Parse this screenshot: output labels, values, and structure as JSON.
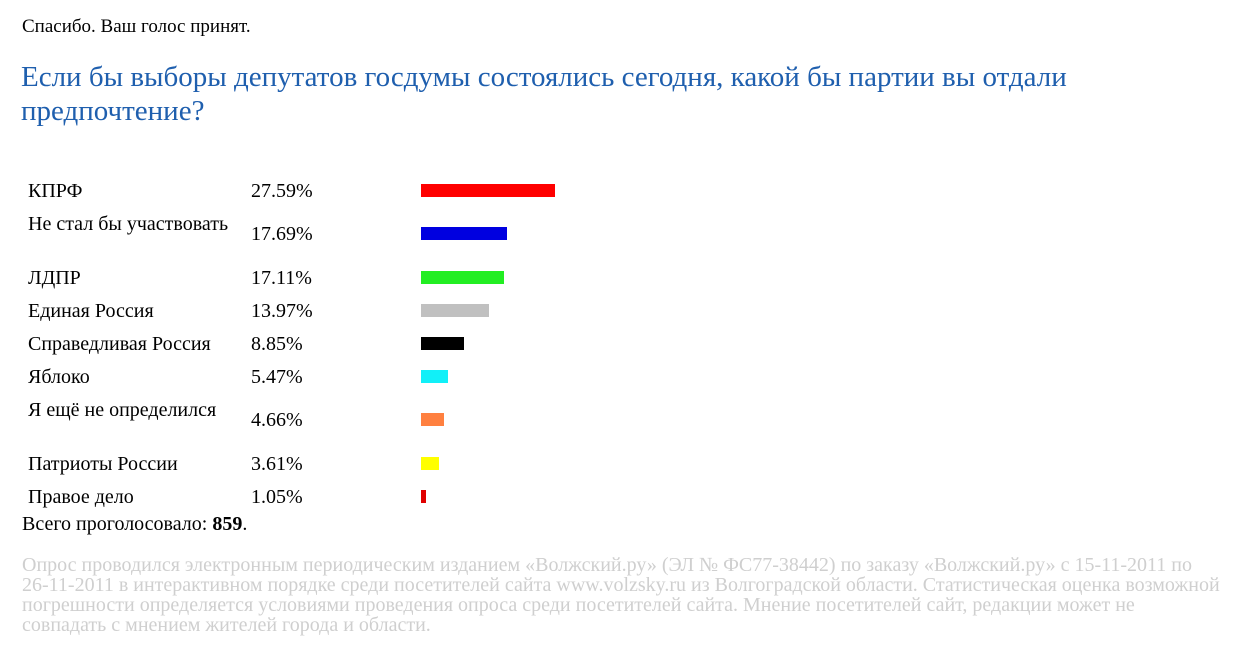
{
  "header": {
    "thanks": "Спасибо. Ваш голос принят."
  },
  "question": "Если бы выборы депутатов госдумы состоялись сегодня, какой бы партии вы отдали предпочтение?",
  "chart_data": {
    "type": "bar",
    "orientation": "horizontal",
    "categories": [
      "КПРФ",
      "Не стал бы участвовать",
      "ЛДПР",
      "Единая Россия",
      "Справедливая Россия",
      "Яблоко",
      "Я ещё не определился",
      "Патриоты России",
      "Правое дело"
    ],
    "values": [
      27.59,
      17.69,
      17.11,
      13.97,
      8.85,
      5.47,
      4.66,
      3.61,
      1.05
    ],
    "value_labels": [
      "27.59%",
      "17.69%",
      "17.11%",
      "13.97%",
      "8.85%",
      "5.47%",
      "4.66%",
      "3.61%",
      "1.05%"
    ],
    "colors": [
      "#ff0000",
      "#0000e0",
      "#22ee22",
      "#c0c0c0",
      "#000000",
      "#11f0f8",
      "#ff8040",
      "#ffff00",
      "#e00000"
    ],
    "unit": "%",
    "xlim": [
      0,
      100
    ]
  },
  "total": {
    "label": "Всего проголосовало:",
    "count": "859",
    "suffix": "."
  },
  "footnote": "Опрос проводился электронным периодическим изданием «Волжский.ру» (ЭЛ № ФС77-38442) по заказу «Волжский.ру» с 15-11-2011 по 26-11-2011 в интерактивном порядке среди посетителей сайта www.volzsky.ru из Волгоградской области. Статистическая оценка возможной погрешности определяется условиями проведения опроса среди посетителей сайта. Мнение посетителей сайт, редакции может не совпадать с мнением жителей города и области."
}
